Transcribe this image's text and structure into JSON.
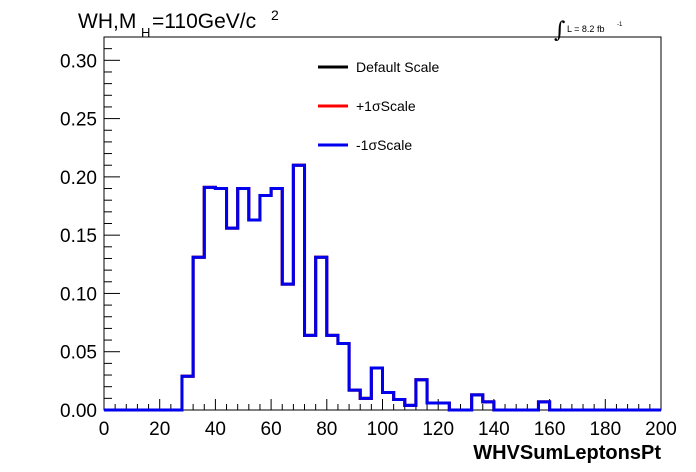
{
  "chart_data": {
    "type": "line",
    "title_main": "WH,M",
    "title_sub": "H",
    "title_rest": "=110GeV/c",
    "title_sup": "2",
    "lumi_label": "L = 8.2 fb",
    "lumi_sup": "-1",
    "xlabel": "WHVSumLeptonsPt",
    "xlim": [
      0,
      200
    ],
    "ylim": [
      0,
      0.32
    ],
    "xticks": [
      0,
      20,
      40,
      60,
      80,
      100,
      120,
      140,
      160,
      180,
      200
    ],
    "xtick_labels": [
      "0",
      "20",
      "40",
      "60",
      "80",
      "100",
      "120",
      "140",
      "160",
      "180",
      "200"
    ],
    "yticks": [
      0,
      0.05,
      0.1,
      0.15,
      0.2,
      0.25,
      0.3
    ],
    "ytick_labels": [
      "0.00",
      "0.05",
      "0.10",
      "0.15",
      "0.20",
      "0.25",
      "0.30"
    ],
    "grid": false,
    "legend_position": "top-center",
    "bin_edges": [
      0,
      4,
      8,
      12,
      16,
      20,
      24,
      28,
      32,
      36,
      40,
      44,
      48,
      52,
      56,
      60,
      64,
      68,
      72,
      76,
      80,
      84,
      88,
      92,
      96,
      100,
      104,
      108,
      112,
      116,
      120,
      124,
      128,
      132,
      136,
      140,
      144,
      148,
      152,
      156,
      160,
      164,
      168,
      172,
      176,
      180,
      184,
      188,
      192,
      196,
      200
    ],
    "series": [
      {
        "name": "Default Scale",
        "color": "#000000",
        "values": [
          0,
          0,
          0,
          0,
          0,
          0,
          0,
          0.029,
          0.131,
          0.191,
          0.19,
          0.156,
          0.19,
          0.163,
          0.184,
          0.19,
          0.108,
          0.21,
          0.064,
          0.131,
          0.064,
          0.057,
          0.017,
          0.01,
          0.036,
          0.015,
          0.009,
          0.004,
          0.026,
          0.006,
          0.006,
          0,
          0,
          0.013,
          0.007,
          0,
          0,
          0,
          0,
          0.007,
          0,
          0,
          0,
          0,
          0,
          0,
          0,
          0,
          0,
          0
        ]
      },
      {
        "name": "+1σScale",
        "color": "#ff0000",
        "values": [
          0,
          0,
          0,
          0,
          0,
          0,
          0,
          0.029,
          0.131,
          0.191,
          0.19,
          0.156,
          0.19,
          0.163,
          0.184,
          0.19,
          0.108,
          0.21,
          0.064,
          0.131,
          0.064,
          0.057,
          0.017,
          0.01,
          0.036,
          0.015,
          0.009,
          0.004,
          0.026,
          0.006,
          0.006,
          0,
          0,
          0.013,
          0.007,
          0,
          0,
          0,
          0,
          0.007,
          0,
          0,
          0,
          0,
          0,
          0,
          0,
          0,
          0,
          0
        ]
      },
      {
        "name": "-1σScale",
        "color": "#0000ee",
        "values": [
          0,
          0,
          0,
          0,
          0,
          0,
          0,
          0.029,
          0.131,
          0.191,
          0.19,
          0.156,
          0.19,
          0.163,
          0.184,
          0.19,
          0.108,
          0.21,
          0.064,
          0.131,
          0.064,
          0.057,
          0.017,
          0.01,
          0.036,
          0.015,
          0.009,
          0.004,
          0.026,
          0.006,
          0.006,
          0,
          0,
          0.013,
          0.007,
          0,
          0,
          0,
          0,
          0.007,
          0,
          0,
          0,
          0,
          0,
          0,
          0,
          0,
          0,
          0
        ]
      }
    ]
  }
}
